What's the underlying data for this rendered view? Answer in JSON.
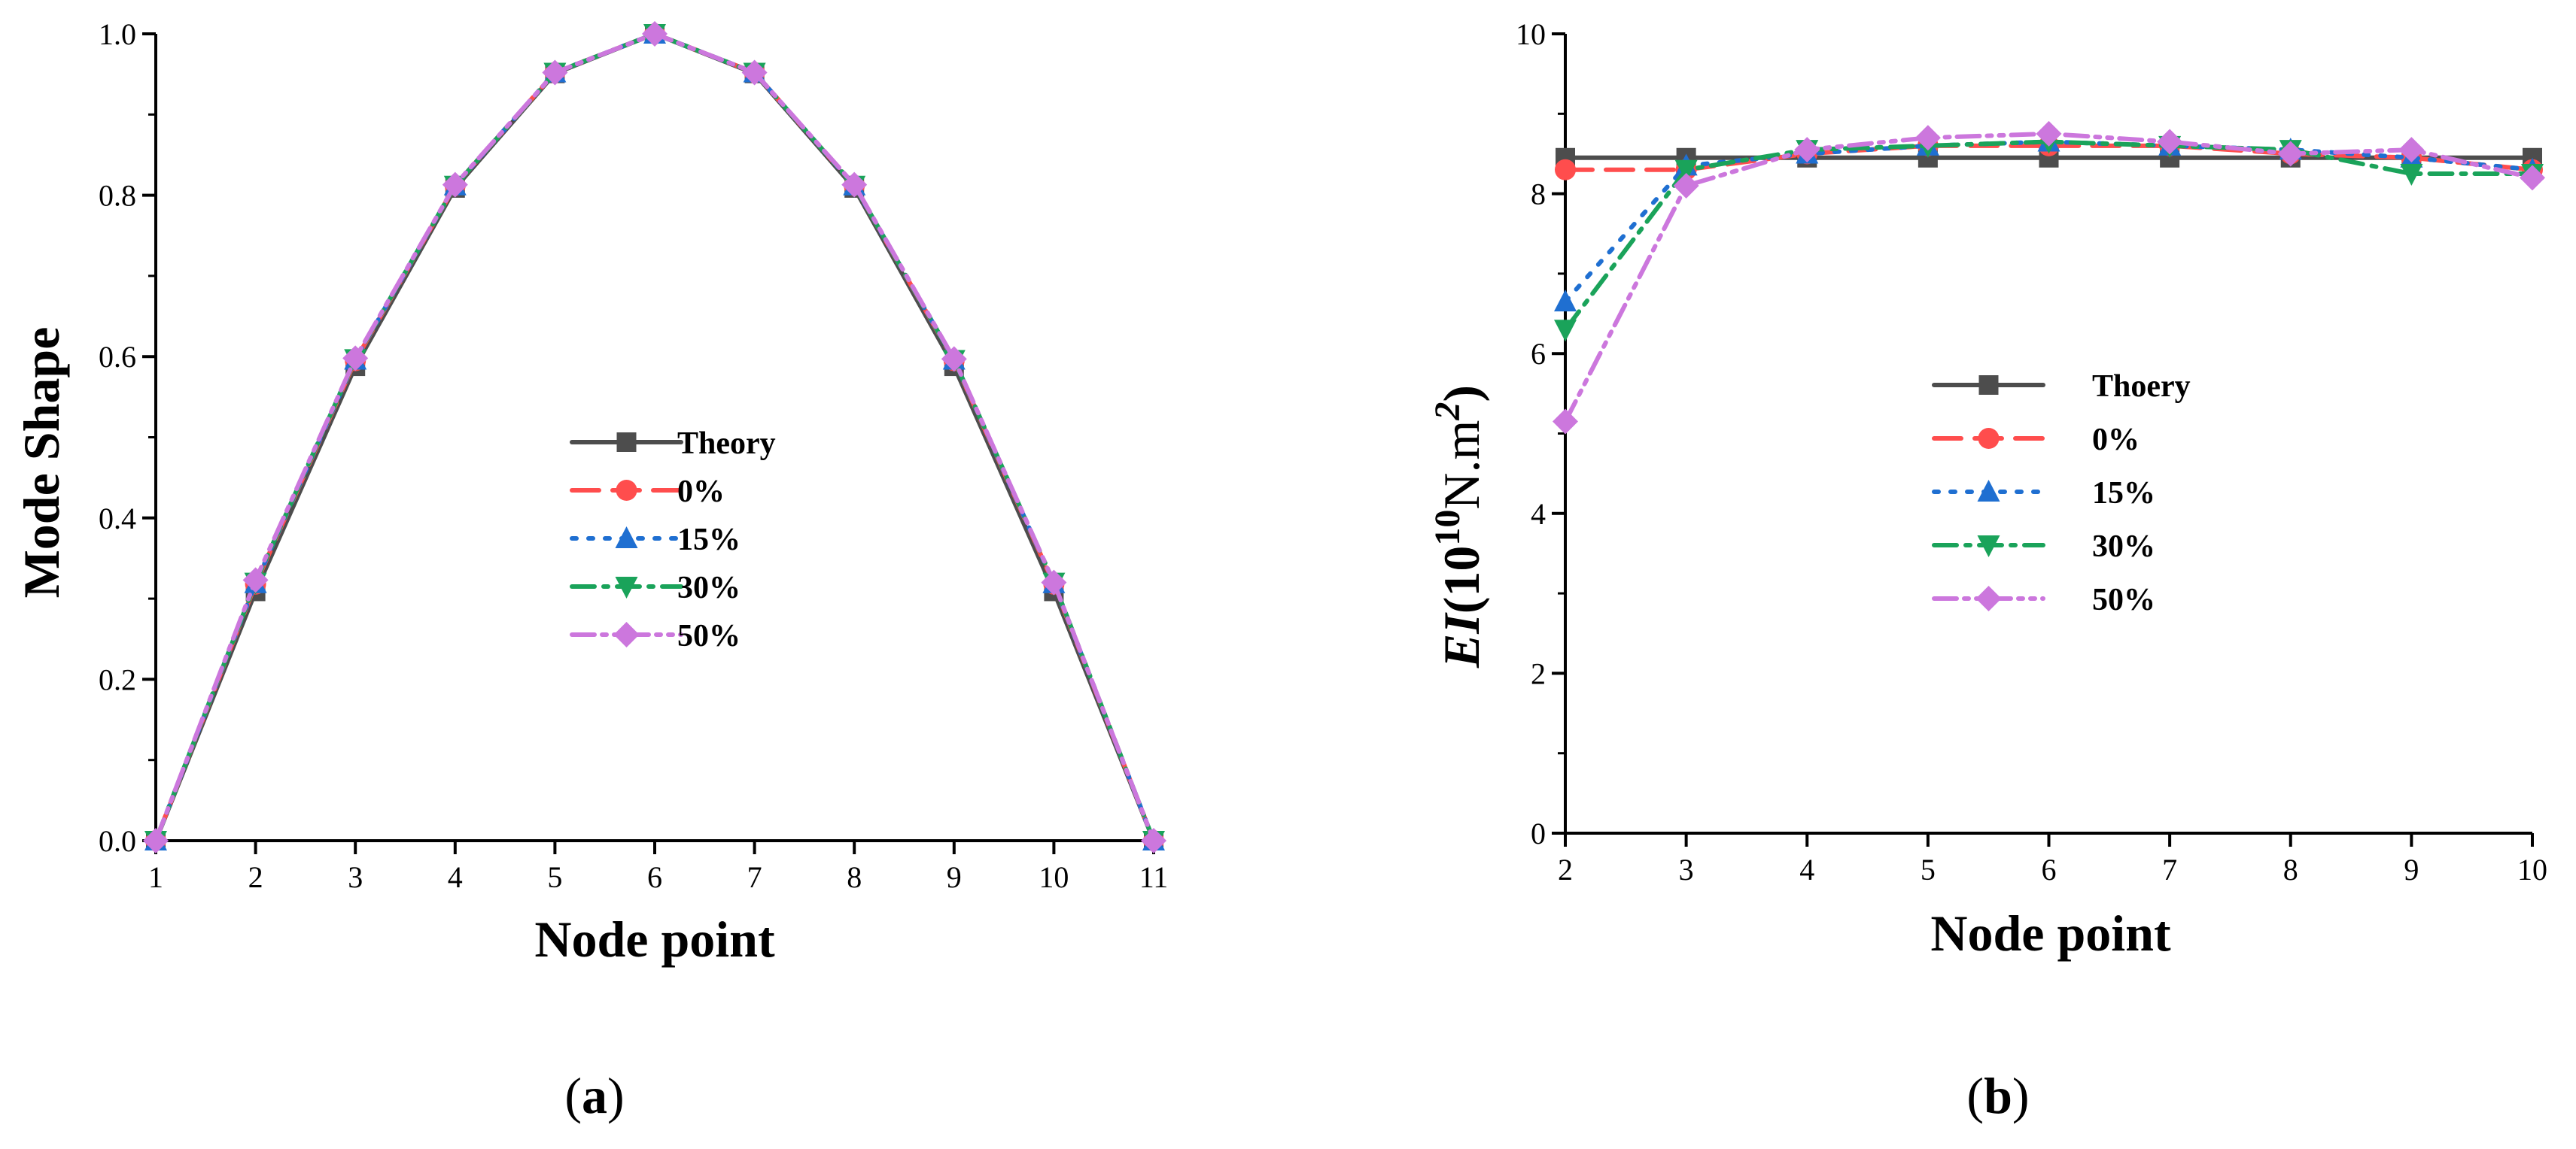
{
  "chart_data": [
    {
      "type": "line",
      "panel_label": "a",
      "xlabel": "Node point",
      "ylabel": "Mode Shape",
      "xlim": [
        1,
        11
      ],
      "ylim": [
        0.0,
        1.0
      ],
      "x_ticks": [
        "1",
        "2",
        "3",
        "4",
        "5",
        "6",
        "7",
        "8",
        "9",
        "10",
        "11"
      ],
      "y_ticks": [
        "0.0",
        "0.2",
        "0.4",
        "0.6",
        "0.8",
        "1.0"
      ],
      "x": [
        1,
        2,
        3,
        4,
        5,
        6,
        7,
        8,
        9,
        10,
        11
      ],
      "legend_position": "center",
      "series": [
        {
          "name": "Theory",
          "color": "#4d4d4d",
          "dash": "solid",
          "marker": "square",
          "values": [
            0.0,
            0.309,
            0.588,
            0.809,
            0.951,
            1.0,
            0.951,
            0.809,
            0.588,
            0.309,
            0.0
          ]
        },
        {
          "name": "0%",
          "color": "#ff4d4d",
          "dash": "dash",
          "marker": "circle",
          "values": [
            0.0,
            0.318,
            0.595,
            0.812,
            0.952,
            1.0,
            0.952,
            0.812,
            0.595,
            0.318,
            0.0
          ]
        },
        {
          "name": "15%",
          "color": "#1f6fd1",
          "dash": "dot",
          "marker": "triangle-up",
          "values": [
            0.0,
            0.319,
            0.596,
            0.812,
            0.952,
            1.0,
            0.952,
            0.812,
            0.596,
            0.319,
            0.0
          ]
        },
        {
          "name": "30%",
          "color": "#1aa35a",
          "dash": "dashdot",
          "marker": "triangle-down",
          "values": [
            0.0,
            0.32,
            0.597,
            0.812,
            0.952,
            1.0,
            0.952,
            0.812,
            0.596,
            0.32,
            0.0
          ]
        },
        {
          "name": "50%",
          "color": "#cc77dd",
          "dash": "dashdotdot",
          "marker": "diamond",
          "values": [
            0.0,
            0.323,
            0.598,
            0.813,
            0.952,
            1.0,
            0.952,
            0.813,
            0.597,
            0.32,
            0.0
          ]
        }
      ]
    },
    {
      "type": "line",
      "panel_label": "b",
      "xlabel": "Node point",
      "ylabel": "EI",
      "ylabel_unit": "(10",
      "ylabel_exp": "10",
      "ylabel_unit2": "N.m",
      "ylabel_exp2": "2",
      "ylabel_close": ")",
      "xlim": [
        2,
        10
      ],
      "ylim": [
        0,
        10
      ],
      "x_ticks": [
        "2",
        "3",
        "4",
        "5",
        "6",
        "7",
        "8",
        "9",
        "10"
      ],
      "y_ticks": [
        "0",
        "2",
        "4",
        "6",
        "8",
        "10"
      ],
      "x": [
        2,
        3,
        4,
        5,
        6,
        7,
        8,
        9,
        10
      ],
      "legend_position": "center",
      "series": [
        {
          "name": "Thoery",
          "color": "#4d4d4d",
          "dash": "solid",
          "marker": "square",
          "values": [
            8.45,
            8.45,
            8.45,
            8.45,
            8.45,
            8.45,
            8.45,
            8.45,
            8.45
          ]
        },
        {
          "name": "0%",
          "color": "#ff4d4d",
          "dash": "dash",
          "marker": "circle",
          "values": [
            8.3,
            8.3,
            8.5,
            8.6,
            8.6,
            8.6,
            8.5,
            8.45,
            8.3
          ]
        },
        {
          "name": "15%",
          "color": "#1f6fd1",
          "dash": "dot",
          "marker": "triangle-up",
          "values": [
            6.65,
            8.35,
            8.5,
            8.6,
            8.65,
            8.6,
            8.55,
            8.45,
            8.3
          ]
        },
        {
          "name": "30%",
          "color": "#1aa35a",
          "dash": "dashdot",
          "marker": "triangle-down",
          "values": [
            6.3,
            8.3,
            8.55,
            8.6,
            8.65,
            8.6,
            8.55,
            8.25,
            8.25
          ]
        },
        {
          "name": "50%",
          "color": "#cc77dd",
          "dash": "dashdotdot",
          "marker": "diamond",
          "values": [
            5.15,
            8.1,
            8.55,
            8.7,
            8.75,
            8.65,
            8.5,
            8.55,
            8.2
          ]
        }
      ]
    }
  ]
}
